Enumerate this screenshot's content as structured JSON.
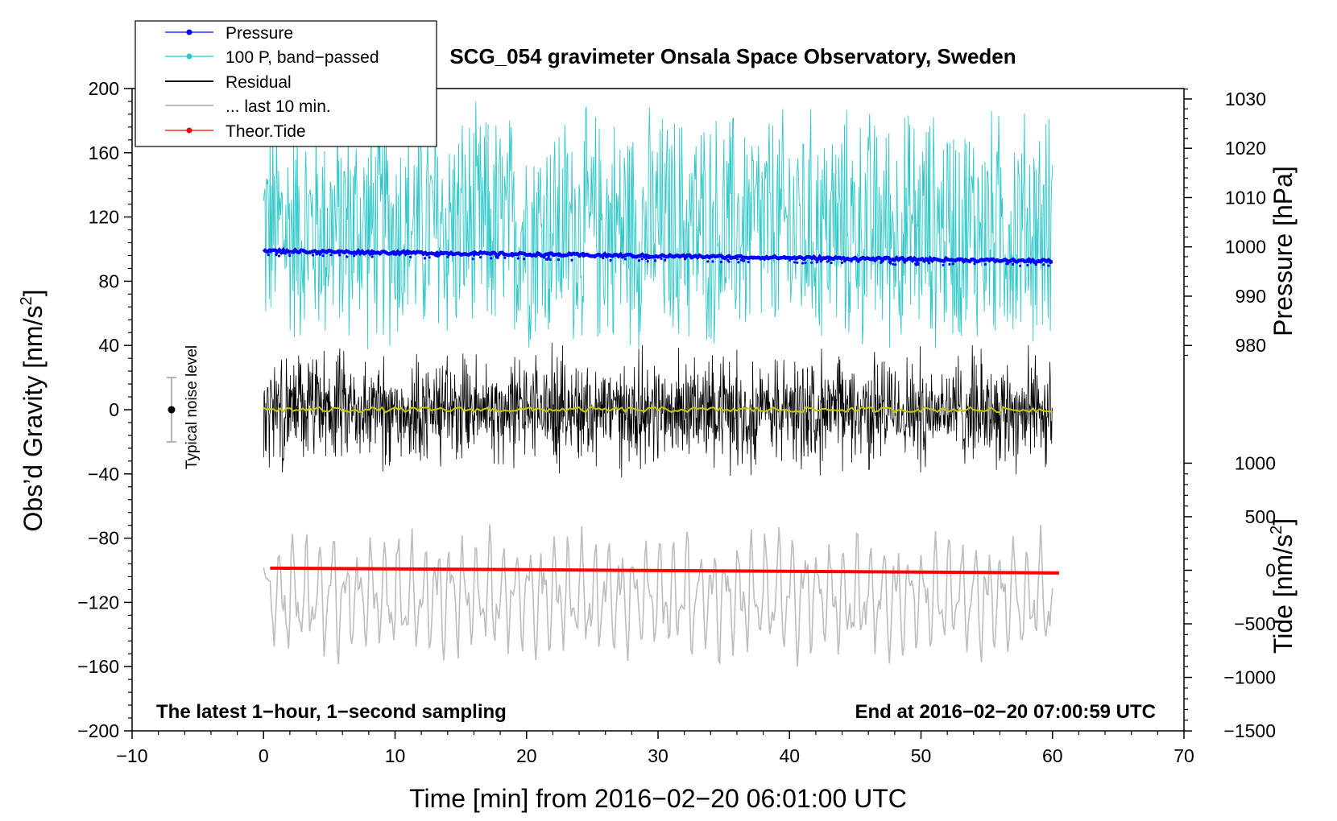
{
  "chart_data": {
    "type": "line",
    "title": "SCG_054 gravimeter Onsala Space Observatory, Sweden",
    "xlabel": "Time [min] from 2016−02−20 06:01:00 UTC",
    "ylabel_left": "Obs’d Gravity [nm/s",
    "ylabel_left_sup": "2",
    "ylabel_left_close": "]",
    "ylabel_right_top": "Pressure [hPa]",
    "ylabel_right_bottom": "Tide [nm/s",
    "ylabel_right_bottom_sup": "2",
    "ylabel_right_bottom_close": "]",
    "xlim": [
      -10,
      70
    ],
    "ylim_left": [
      -200,
      200
    ],
    "x_ticks": [
      -10,
      0,
      10,
      20,
      30,
      40,
      50,
      60,
      70
    ],
    "x_tick_labels": [
      "−10",
      "0",
      "10",
      "20",
      "30",
      "40",
      "50",
      "60",
      "70"
    ],
    "y_ticks_left": [
      -200,
      -160,
      -120,
      -80,
      -40,
      0,
      40,
      80,
      120,
      160,
      200
    ],
    "y_tick_labels_left": [
      "−200",
      "−160",
      "−120",
      "−80",
      "−40",
      "0",
      "40",
      "80",
      "120",
      "160",
      "200"
    ],
    "pressure_axis": {
      "ticks": [
        980,
        990,
        1000,
        1010,
        1020,
        1030
      ],
      "tick_labels": [
        "980",
        "990",
        "1000",
        "1010",
        "1020",
        "1030"
      ],
      "left_value_at_980": 40,
      "left_units_per_hPa": 3.07
    },
    "tide_axis": {
      "ticks": [
        -1500,
        -1000,
        -500,
        0,
        500,
        1000
      ],
      "tick_labels": [
        "−1500",
        "−1000",
        "−500",
        "0",
        "500",
        "1000"
      ],
      "left_value_at_0": -100,
      "left_units_per_nms2": 0.0667
    },
    "annotations": {
      "bottom_left": "The latest 1−hour, 1−second sampling",
      "bottom_right": "End at 2016−02−20 07:00:59 UTC",
      "noise_label": "Typical noise level"
    },
    "noise_bar": {
      "x": -7,
      "center": 0,
      "half_range": 20
    },
    "legend": {
      "position": "top-left",
      "entries": [
        {
          "label": "Pressure",
          "color": "#0000ff",
          "marker": true
        },
        {
          "label": "100 P, band−passed",
          "color": "#2ec8c8",
          "marker": true
        },
        {
          "label": "Residual",
          "color": "#000000",
          "marker": false
        },
        {
          "label": "... last 10 min.",
          "color": "#bdbdbd",
          "marker": false
        },
        {
          "label": "Theor.Tide",
          "color": "#ff0000",
          "marker": true
        }
      ]
    },
    "series": [
      {
        "name": "Pressure",
        "units": "hPa",
        "color": "#0000ff",
        "x_range": [
          0,
          60
        ],
        "start_value": 999.2,
        "end_value": 997.1
      },
      {
        "name": "100 P, band−passed",
        "units": "nm/s2",
        "color": "#2ec8c8",
        "x_range": [
          0,
          60
        ],
        "typical_min": 30,
        "typical_max": 195
      },
      {
        "name": "Residual",
        "units": "nm/s2",
        "color": "#000000",
        "x_range": [
          0,
          60
        ],
        "typical_min": -45,
        "typical_max": 45
      },
      {
        "name": "Residual (smoothed)",
        "units": "nm/s2",
        "color": "#c8c800",
        "x_range": [
          0,
          60
        ],
        "value": 0
      },
      {
        "name": "... last 10 min.",
        "units": "nm/s2",
        "color": "#bdbdbd",
        "x_range": [
          0,
          60
        ],
        "typical_min": -158,
        "typical_max": -75
      },
      {
        "name": "Theor.Tide",
        "units": "nm/s2",
        "color": "#ff0000",
        "x_range": [
          0.5,
          60.5
        ],
        "start_value": 20,
        "end_value": -25
      }
    ]
  }
}
